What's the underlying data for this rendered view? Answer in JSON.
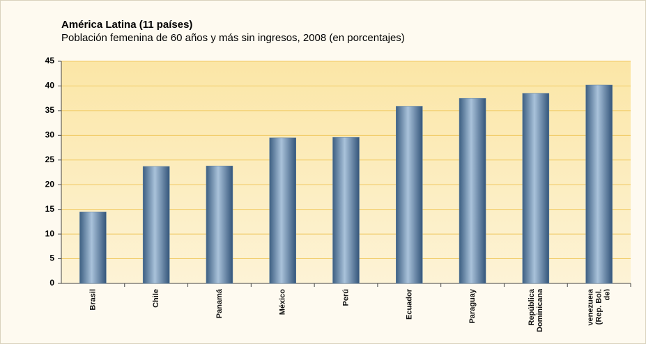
{
  "chart_data": {
    "type": "bar",
    "title": "América Latina (11 países)",
    "subtitle": "Población femenina de 60 años y más sin ingresos, 2008 (en porcentajes)",
    "categories": [
      "Brasil",
      "Chile",
      "Panamá",
      "México",
      "Perú",
      "Ecuador",
      "Paraguay",
      "República Dominicana",
      "Venezuela (Rep. Bol. de)"
    ],
    "values": [
      14.5,
      23.7,
      23.8,
      29.5,
      29.6,
      35.9,
      37.5,
      38.5,
      40.2
    ],
    "color": "#5a7fa3",
    "ylim": [
      0,
      45
    ],
    "yticks": [
      0,
      5,
      10,
      15,
      20,
      25,
      30,
      35,
      40,
      45
    ],
    "grid": true
  }
}
